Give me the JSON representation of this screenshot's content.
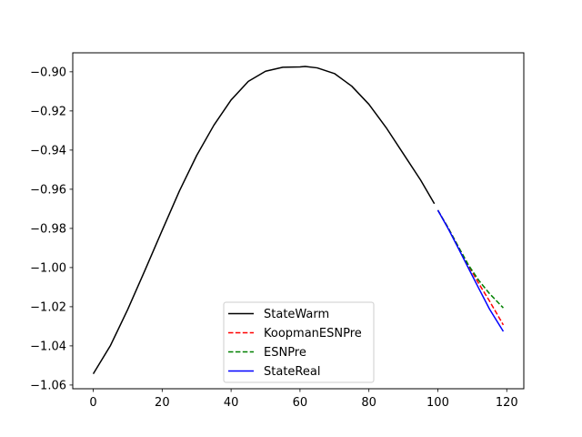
{
  "chart_data": {
    "type": "line",
    "title": "",
    "xlabel": "",
    "ylabel": "",
    "xlim": [
      -5.95,
      124.95
    ],
    "ylim": [
      -1.0619,
      -0.8903
    ],
    "x_ticks": [
      0,
      20,
      40,
      60,
      80,
      100,
      120
    ],
    "x_tick_labels": [
      "0",
      "20",
      "40",
      "60",
      "80",
      "100",
      "120"
    ],
    "y_ticks": [
      -1.06,
      -1.04,
      -1.02,
      -1.0,
      -0.98,
      -0.96,
      -0.94,
      -0.92,
      -0.9
    ],
    "y_tick_labels": [
      "−1.06",
      "−1.04",
      "−1.02",
      "−1.00",
      "−0.98",
      "−0.96",
      "−0.94",
      "−0.92",
      "−0.90"
    ],
    "grid": false,
    "legend_position": "bottom-center",
    "series": [
      {
        "name": "StateWarm",
        "color": "#000000",
        "dash": "solid",
        "points": [
          [
            0,
            -1.0543
          ],
          [
            5,
            -1.0398
          ],
          [
            10,
            -1.0214
          ],
          [
            15,
            -1.0014
          ],
          [
            20,
            -0.981
          ],
          [
            25,
            -0.9609
          ],
          [
            30,
            -0.9428
          ],
          [
            35,
            -0.9273
          ],
          [
            40,
            -0.9144
          ],
          [
            45,
            -0.9049
          ],
          [
            50,
            -0.8997
          ],
          [
            55,
            -0.8977
          ],
          [
            60,
            -0.8975
          ],
          [
            61.5,
            -0.8973
          ],
          [
            65,
            -0.898
          ],
          [
            70,
            -0.9009
          ],
          [
            75,
            -0.9073
          ],
          [
            80,
            -0.9166
          ],
          [
            85,
            -0.9285
          ],
          [
            90,
            -0.9419
          ],
          [
            95,
            -0.9553
          ],
          [
            99,
            -0.9674
          ]
        ]
      },
      {
        "name": "KoopmanESNPre",
        "color": "#ff0000",
        "dash": "dashed",
        "points": [
          [
            100,
            -0.9707
          ],
          [
            103,
            -0.9797
          ],
          [
            106,
            -0.9895
          ],
          [
            109,
            -0.9993
          ],
          [
            112,
            -1.0085
          ],
          [
            115,
            -1.0171
          ],
          [
            119,
            -1.0293
          ]
        ]
      },
      {
        "name": "ESNPre",
        "color": "#008000",
        "dash": "dashed",
        "points": [
          [
            100,
            -0.9707
          ],
          [
            103,
            -0.9797
          ],
          [
            106,
            -0.9895
          ],
          [
            109,
            -0.999
          ],
          [
            112,
            -1.0068
          ],
          [
            115,
            -1.0133
          ],
          [
            119,
            -1.0206
          ]
        ]
      },
      {
        "name": "StateReal",
        "color": "#0000ff",
        "dash": "solid",
        "points": [
          [
            100,
            -0.9707
          ],
          [
            103,
            -0.9801
          ],
          [
            106,
            -0.9903
          ],
          [
            109,
            -1.0007
          ],
          [
            112,
            -1.011
          ],
          [
            115,
            -1.0212
          ],
          [
            119,
            -1.0326
          ]
        ]
      }
    ]
  }
}
